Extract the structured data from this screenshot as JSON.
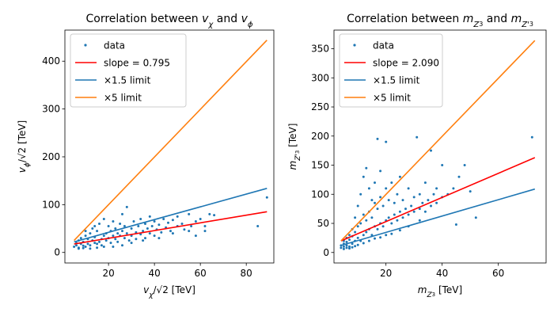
{
  "chart_data": [
    {
      "type": "scatter",
      "title": "Correlation between v_χ and v_φ",
      "xlabel": "v_χ/√2 [TeV]",
      "ylabel": "v_φ/√2 [TeV]",
      "xlim": [
        1,
        92
      ],
      "ylim": [
        -22,
        465
      ],
      "xticks": [
        20,
        40,
        60,
        80
      ],
      "yticks": [
        0,
        100,
        200,
        300,
        400
      ],
      "grid": false,
      "legend_position": "top-left",
      "series": [
        {
          "name": "data",
          "kind": "scatter",
          "color": "#1f77b4",
          "points": [
            [
              5,
              12
            ],
            [
              6,
              15
            ],
            [
              6,
              20
            ],
            [
              7,
              10
            ],
            [
              7,
              25
            ],
            [
              8,
              18
            ],
            [
              8,
              30
            ],
            [
              9,
              14
            ],
            [
              9,
              22
            ],
            [
              10,
              35
            ],
            [
              10,
              12
            ],
            [
              11,
              28
            ],
            [
              11,
              18
            ],
            [
              12,
              40
            ],
            [
              12,
              15
            ],
            [
              13,
              25
            ],
            [
              13,
              50
            ],
            [
              14,
              20
            ],
            [
              14,
              32
            ],
            [
              15,
              18
            ],
            [
              15,
              45
            ],
            [
              16,
              22
            ],
            [
              16,
              60
            ],
            [
              17,
              28
            ],
            [
              17,
              15
            ],
            [
              18,
              35
            ],
            [
              18,
              70
            ],
            [
              19,
              25
            ],
            [
              19,
              40
            ],
            [
              20,
              30
            ],
            [
              20,
              55
            ],
            [
              21,
              20
            ],
            [
              21,
              45
            ],
            [
              22,
              35
            ],
            [
              22,
              65
            ],
            [
              23,
              28
            ],
            [
              23,
              50
            ],
            [
              24,
              40
            ],
            [
              24,
              22
            ],
            [
              25,
              60
            ],
            [
              25,
              35
            ],
            [
              26,
              45
            ],
            [
              26,
              80
            ],
            [
              27,
              30
            ],
            [
              27,
              55
            ],
            [
              28,
              40
            ],
            [
              28,
              95
            ],
            [
              29,
              25
            ],
            [
              30,
              50
            ],
            [
              30,
              35
            ],
            [
              31,
              65
            ],
            [
              32,
              42
            ],
            [
              32,
              28
            ],
            [
              33,
              55
            ],
            [
              34,
              38
            ],
            [
              34,
              70
            ],
            [
              35,
              45
            ],
            [
              36,
              30
            ],
            [
              36,
              60
            ],
            [
              37,
              50
            ],
            [
              38,
              40
            ],
            [
              38,
              75
            ],
            [
              39,
              55
            ],
            [
              40,
              35
            ],
            [
              40,
              65
            ],
            [
              41,
              48
            ],
            [
              42,
              58
            ],
            [
              43,
              42
            ],
            [
              44,
              70
            ],
            [
              45,
              52
            ],
            [
              46,
              62
            ],
            [
              47,
              45
            ],
            [
              48,
              68
            ],
            [
              50,
              55
            ],
            [
              50,
              75
            ],
            [
              52,
              60
            ],
            [
              53,
              48
            ],
            [
              55,
              80
            ],
            [
              56,
              55
            ],
            [
              58,
              65
            ],
            [
              60,
              70
            ],
            [
              62,
              45
            ],
            [
              64,
              80
            ],
            [
              66,
              78
            ],
            [
              7,
              8
            ],
            [
              9,
              9
            ],
            [
              12,
              8
            ],
            [
              15,
              10
            ],
            [
              18,
              12
            ],
            [
              10,
              45
            ],
            [
              14,
              55
            ],
            [
              22,
              12
            ],
            [
              26,
              15
            ],
            [
              30,
              20
            ],
            [
              35,
              25
            ],
            [
              42,
              30
            ],
            [
              48,
              40
            ],
            [
              55,
              45
            ],
            [
              58,
              35
            ],
            [
              62,
              55
            ],
            [
              85,
              55
            ],
            [
              89,
              115
            ]
          ]
        },
        {
          "name": "slope = 0.795",
          "kind": "line",
          "color": "#ff0000",
          "x": [
            5,
            89
          ],
          "y": [
            17.6,
            85.2
          ]
        },
        {
          "name": "×1.5 limit",
          "kind": "line",
          "color": "#1f77b4",
          "x": [
            5,
            89
          ],
          "y": [
            22,
            134
          ]
        },
        {
          "name": "×5 limit",
          "kind": "line",
          "color": "#ff7f0e",
          "x": [
            5,
            89
          ],
          "y": [
            25,
            444
          ]
        }
      ]
    },
    {
      "type": "scatter",
      "title": "Correlation between m_Z3 and m_Z'3",
      "xlabel": "m_Z3 [TeV]",
      "ylabel": "m_Z'3 [TeV]",
      "xlim": [
        1.5,
        77
      ],
      "ylim": [
        -18,
        382
      ],
      "xticks": [
        20,
        40,
        60
      ],
      "yticks": [
        0,
        50,
        100,
        150,
        200,
        250,
        300,
        350
      ],
      "grid": false,
      "legend_position": "top-left",
      "series": [
        {
          "name": "data",
          "kind": "scatter",
          "color": "#1f77b4",
          "points": [
            [
              4,
              8
            ],
            [
              4,
              12
            ],
            [
              5,
              10
            ],
            [
              5,
              15
            ],
            [
              5,
              20
            ],
            [
              6,
              12
            ],
            [
              6,
              18
            ],
            [
              6,
              25
            ],
            [
              7,
              10
            ],
            [
              7,
              22
            ],
            [
              7,
              30
            ],
            [
              8,
              15
            ],
            [
              8,
              28
            ],
            [
              8,
              40
            ],
            [
              9,
              20
            ],
            [
              9,
              35
            ],
            [
              9,
              60
            ],
            [
              10,
              25
            ],
            [
              10,
              45
            ],
            [
              10,
              80
            ],
            [
              11,
              20
            ],
            [
              11,
              50
            ],
            [
              11,
              100
            ],
            [
              12,
              30
            ],
            [
              12,
              65
            ],
            [
              12,
              130
            ],
            [
              13,
              35
            ],
            [
              13,
              55
            ],
            [
              13,
              145
            ],
            [
              14,
              40
            ],
            [
              14,
              70
            ],
            [
              14,
              110
            ],
            [
              15,
              30
            ],
            [
              15,
              60
            ],
            [
              15,
              90
            ],
            [
              16,
              45
            ],
            [
              16,
              85
            ],
            [
              16,
              120
            ],
            [
              17,
              40
            ],
            [
              17,
              75
            ],
            [
              17,
              195
            ],
            [
              18,
              50
            ],
            [
              18,
              95
            ],
            [
              18,
              140
            ],
            [
              19,
              45
            ],
            [
              19,
              80
            ],
            [
              20,
              55
            ],
            [
              20,
              110
            ],
            [
              20,
              190
            ],
            [
              21,
              60
            ],
            [
              21,
              90
            ],
            [
              22,
              50
            ],
            [
              22,
              120
            ],
            [
              23,
              65
            ],
            [
              23,
              85
            ],
            [
              24,
              55
            ],
            [
              24,
              100
            ],
            [
              25,
              70
            ],
            [
              25,
              130
            ],
            [
              26,
              60
            ],
            [
              26,
              90
            ],
            [
              27,
              75
            ],
            [
              28,
              65
            ],
            [
              28,
              110
            ],
            [
              29,
              80
            ],
            [
              30,
              70
            ],
            [
              30,
              95
            ],
            [
              31,
              198
            ],
            [
              32,
              75
            ],
            [
              32,
              100
            ],
            [
              33,
              85
            ],
            [
              34,
              70
            ],
            [
              34,
              120
            ],
            [
              35,
              90
            ],
            [
              36,
              175
            ],
            [
              36,
              80
            ],
            [
              37,
              100
            ],
            [
              38,
              85
            ],
            [
              38,
              110
            ],
            [
              40,
              95
            ],
            [
              40,
              150
            ],
            [
              42,
              100
            ],
            [
              44,
              110
            ],
            [
              45,
              48
            ],
            [
              46,
              130
            ],
            [
              48,
              150
            ],
            [
              50,
              105
            ],
            [
              52,
              60
            ],
            [
              5,
              6
            ],
            [
              6,
              8
            ],
            [
              7,
              7
            ],
            [
              8,
              9
            ],
            [
              9,
              11
            ],
            [
              10,
              13
            ],
            [
              12,
              16
            ],
            [
              14,
              20
            ],
            [
              16,
              24
            ],
            [
              18,
              26
            ],
            [
              20,
              30
            ],
            [
              22,
              32
            ],
            [
              25,
              38
            ],
            [
              28,
              45
            ],
            [
              32,
              55
            ],
            [
              72,
              198
            ]
          ]
        },
        {
          "name": "slope = 2.090",
          "kind": "line",
          "color": "#ff0000",
          "x": [
            4,
            73
          ],
          "y": [
            20,
            163
          ]
        },
        {
          "name": "×1.5 limit",
          "kind": "line",
          "color": "#1f77b4",
          "x": [
            4,
            73
          ],
          "y": [
            12,
            109
          ]
        },
        {
          "name": "×5 limit",
          "kind": "line",
          "color": "#ff7f0e",
          "x": [
            4,
            73
          ],
          "y": [
            20,
            364
          ]
        }
      ]
    }
  ]
}
